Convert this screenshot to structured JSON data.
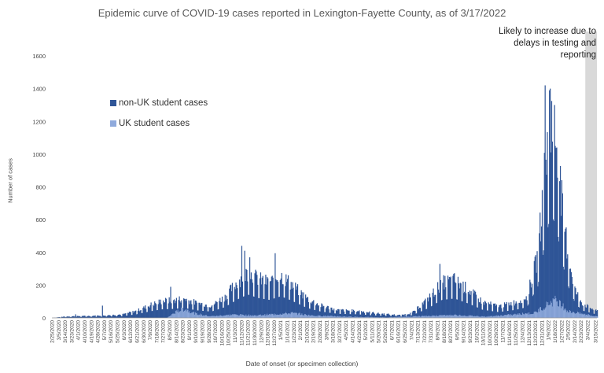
{
  "chart_data": {
    "type": "bar",
    "title": "Epidemic curve of COVID-19 cases reported in Lexington-Fayette County, as of 3/17/2022",
    "ylabel": "Number of cases",
    "xlabel": "Date of onset (or specimen collection)",
    "ylim": [
      0,
      1600
    ],
    "yticks": [
      "0",
      "200",
      "400",
      "600",
      "800",
      "1000",
      "1200",
      "1400",
      "1600"
    ],
    "stacked": true,
    "legend_position": "left-middle",
    "annotation": "Likely to increase due to delays in testing and reporting",
    "shaded_region": {
      "from": "3/1/2022",
      "to": "3/17/2022"
    },
    "series": [
      {
        "name": "non-UK student cases",
        "color": "#2F5597"
      },
      {
        "name": "UK student cases",
        "color": "#8FAADC"
      }
    ],
    "x_ticks": [
      "2/25/2020",
      "3/5/2020",
      "3/14/2020",
      "3/23/2020",
      "4/1/2020",
      "4/10/2020",
      "4/19/2020",
      "4/28/2020",
      "5/7/2020",
      "5/16/2020",
      "5/25/2020",
      "6/3/2020",
      "6/12/2020",
      "6/21/2020",
      "6/30/2020",
      "7/9/2020",
      "7/18/2020",
      "7/27/2020",
      "8/5/2020",
      "8/14/2020",
      "8/23/2020",
      "9/1/2020",
      "9/10/2020",
      "9/19/2020",
      "9/28/2020",
      "10/7/2020",
      "10/16/2020",
      "10/25/2020",
      "11/3/2020",
      "11/12/2020",
      "11/21/2020",
      "11/30/2020",
      "12/9/2020",
      "12/18/2020",
      "12/27/2020",
      "1/5/2021",
      "1/14/2021",
      "1/23/2021",
      "2/1/2021",
      "2/10/2021",
      "2/19/2021",
      "2/28/2021",
      "3/9/2021",
      "3/18/2021",
      "3/27/2021",
      "4/5/2021",
      "4/14/2021",
      "4/23/2021",
      "5/2/2021",
      "5/11/2021",
      "5/20/2021",
      "5/29/2021",
      "6/7/2021",
      "6/16/2021",
      "6/25/2021",
      "7/4/2021",
      "7/13/2021",
      "7/22/2021",
      "7/31/2021",
      "8/9/2021",
      "8/18/2021",
      "8/27/2021",
      "9/5/2021",
      "9/14/2021",
      "9/23/2021",
      "10/2/2021",
      "10/11/2021",
      "10/20/2021",
      "10/29/2021",
      "11/7/2021",
      "11/16/2021",
      "11/25/2021",
      "12/4/2021",
      "12/13/2021",
      "12/22/2021",
      "12/31/2021",
      "1/9/2022",
      "1/18/2022",
      "1/27/2022",
      "2/5/2022",
      "2/14/2022",
      "2/23/2022",
      "3/4/2022",
      "3/15/2022"
    ],
    "profile_non_uk": [
      [
        "2/25/2020",
        0
      ],
      [
        "3/15/2020",
        8
      ],
      [
        "4/1/2020",
        10
      ],
      [
        "4/20/2020",
        12
      ],
      [
        "5/10/2020",
        15
      ],
      [
        "6/1/2020",
        20
      ],
      [
        "6/20/2020",
        40
      ],
      [
        "7/10/2020",
        75
      ],
      [
        "7/25/2020",
        95
      ],
      [
        "8/10/2020",
        100
      ],
      [
        "8/25/2020",
        110
      ],
      [
        "9/10/2020",
        85
      ],
      [
        "10/1/2020",
        70
      ],
      [
        "10/20/2020",
        120
      ],
      [
        "11/5/2020",
        200
      ],
      [
        "11/20/2020",
        260
      ],
      [
        "12/5/2020",
        220
      ],
      [
        "12/20/2020",
        200
      ],
      [
        "1/5/2021",
        240
      ],
      [
        "1/20/2021",
        190
      ],
      [
        "2/10/2021",
        110
      ],
      [
        "3/1/2021",
        70
      ],
      [
        "3/25/2021",
        45
      ],
      [
        "4/20/2021",
        40
      ],
      [
        "5/20/2021",
        25
      ],
      [
        "6/20/2021",
        15
      ],
      [
        "7/5/2021",
        30
      ],
      [
        "7/25/2021",
        100
      ],
      [
        "8/15/2021",
        200
      ],
      [
        "9/1/2021",
        215
      ],
      [
        "9/20/2021",
        160
      ],
      [
        "10/10/2021",
        90
      ],
      [
        "11/1/2021",
        65
      ],
      [
        "11/25/2021",
        90
      ],
      [
        "12/10/2021",
        120
      ],
      [
        "12/25/2021",
        350
      ],
      [
        "1/5/2022",
        900
      ],
      [
        "1/12/2022",
        1150
      ],
      [
        "1/20/2022",
        1000
      ],
      [
        "1/28/2022",
        600
      ],
      [
        "2/5/2022",
        350
      ],
      [
        "2/15/2022",
        150
      ],
      [
        "2/25/2022",
        80
      ],
      [
        "3/15/2022",
        40
      ]
    ],
    "profile_uk": [
      [
        "2/25/2020",
        0
      ],
      [
        "8/1/2020",
        0
      ],
      [
        "8/15/2020",
        40
      ],
      [
        "8/25/2020",
        55
      ],
      [
        "9/10/2020",
        25
      ],
      [
        "10/1/2020",
        10
      ],
      [
        "11/1/2020",
        20
      ],
      [
        "12/1/2020",
        15
      ],
      [
        "1/20/2021",
        30
      ],
      [
        "2/15/2021",
        15
      ],
      [
        "4/1/2021",
        8
      ],
      [
        "6/1/2021",
        3
      ],
      [
        "8/15/2021",
        15
      ],
      [
        "9/1/2021",
        18
      ],
      [
        "10/15/2021",
        8
      ],
      [
        "12/20/2021",
        30
      ],
      [
        "1/10/2022",
        90
      ],
      [
        "1/20/2022",
        110
      ],
      [
        "2/5/2022",
        40
      ],
      [
        "3/15/2022",
        10
      ]
    ],
    "spikes": [
      [
        "8/6/2020",
        190
      ],
      [
        "11/12/2020",
        440
      ],
      [
        "11/16/2020",
        410
      ],
      [
        "11/23/2020",
        370
      ],
      [
        "12/28/2020",
        395
      ],
      [
        "8/12/2021",
        330
      ],
      [
        "1/4/2022",
        1420
      ],
      [
        "1/10/2022",
        1390
      ],
      [
        "1/11/2022",
        1400
      ],
      [
        "1/17/2022",
        1300
      ],
      [
        "5/4/2020",
        75
      ],
      [
        "3/28/2020",
        22
      ]
    ]
  }
}
